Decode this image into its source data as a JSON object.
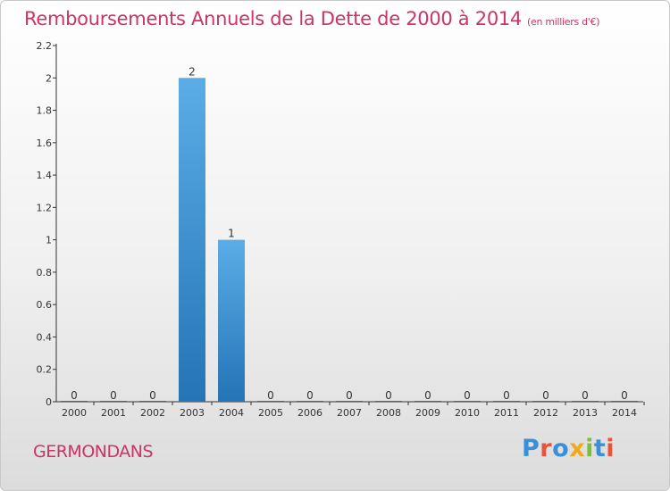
{
  "header": {
    "title": "Remboursements Annuels de la Dette de 2000 à 2014",
    "subtitle": "(en milliers d'€)"
  },
  "footer": {
    "commune": "GERMONDANS",
    "logo_text": "Proxiti"
  },
  "colors": {
    "title": "#cc3366",
    "bar_top": "#5aade6",
    "bar_bottom": "#2474b6",
    "axis": "#333333",
    "logo_letters": [
      "#3b8fd9",
      "#e8543a",
      "#3b8fd9",
      "#f2a81d",
      "#7bbf3c",
      "#3b8fd9",
      "#e8543a"
    ]
  },
  "chart_data": {
    "type": "bar",
    "categories": [
      "2000",
      "2001",
      "2002",
      "2003",
      "2004",
      "2005",
      "2006",
      "2007",
      "2008",
      "2009",
      "2010",
      "2011",
      "2012",
      "2013",
      "2014"
    ],
    "values": [
      0,
      0,
      0,
      2,
      1,
      0,
      0,
      0,
      0,
      0,
      0,
      0,
      0,
      0,
      0
    ],
    "data_labels": [
      "0",
      "0",
      "0",
      "2",
      "1",
      "0",
      "0",
      "0",
      "0",
      "0",
      "0",
      "0",
      "0",
      "0",
      "0"
    ],
    "y_ticks": [
      0,
      0.2,
      0.4,
      0.6,
      0.8,
      1,
      1.2,
      1.4,
      1.6,
      1.8,
      2,
      2.2
    ],
    "y_tick_labels": [
      "0",
      "0.2",
      "0.4",
      "0.6",
      "0.8",
      "1",
      "1.2",
      "1.4",
      "1.6",
      "1.8",
      "2",
      "2.2"
    ],
    "ylim": [
      0,
      2.2
    ],
    "grid": false,
    "legend": "none",
    "xlabel": "",
    "ylabel": ""
  }
}
